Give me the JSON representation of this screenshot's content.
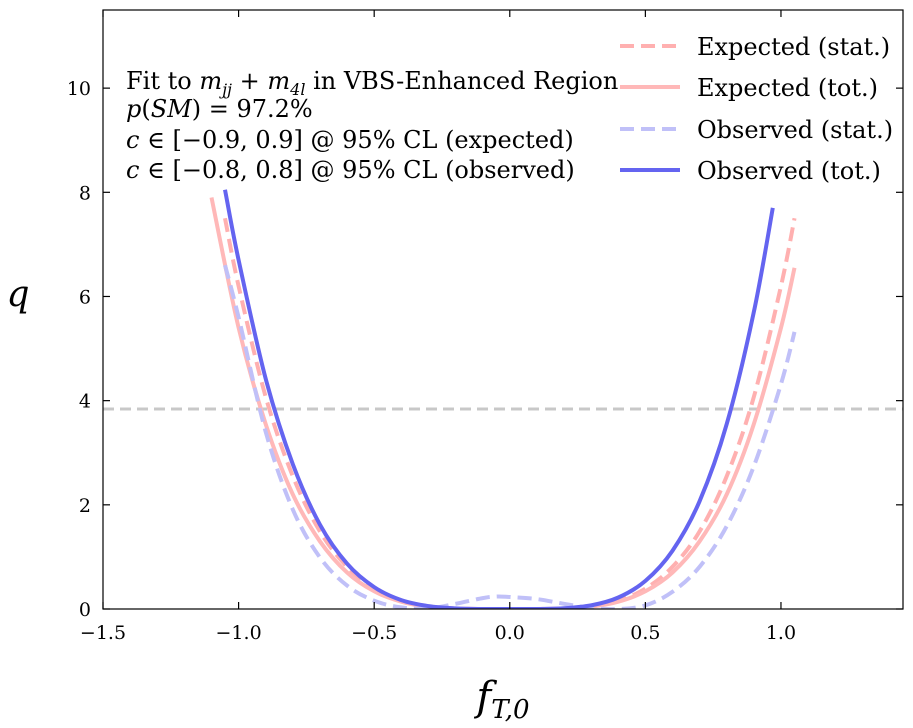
{
  "chart_data": {
    "type": "line",
    "xlabel": "f_{T,0}",
    "ylabel": "q",
    "xlim": [
      -1.5,
      1.45
    ],
    "ylim": [
      0,
      11.5
    ],
    "xticks": [
      -1.5,
      -1.0,
      -0.5,
      0.0,
      0.5,
      1.0
    ],
    "xtick_labels": [
      "−1.5",
      "−1.0",
      "−0.5",
      "0.0",
      "0.5",
      "1.0"
    ],
    "yticks": [
      0,
      2,
      4,
      6,
      8,
      10
    ],
    "ytick_labels": [
      "0",
      "2",
      "4",
      "6",
      "8",
      "10"
    ],
    "grid": false,
    "legend_position": "top-right",
    "annotations": [
      "Fit to mjj + m4l in VBS-Enhanced Region",
      "p(SM) = 97.2%",
      "c ∈ [−0.9, 0.9] @ 95% CL (expected)",
      "c ∈ [−0.8, 0.8] @ 95% CL (observed)"
    ],
    "reference_line": {
      "y": 3.84,
      "color": "#c8c8c8",
      "style": "dashed"
    },
    "series": [
      {
        "name": "Expected (stat.)",
        "color": "#ffb0b0",
        "style": "dashed",
        "x": [
          -1.05,
          -1.0,
          -0.9,
          -0.8,
          -0.7,
          -0.6,
          -0.5,
          -0.4,
          -0.3,
          -0.2,
          -0.1,
          0.0,
          0.1,
          0.2,
          0.3,
          0.4,
          0.5,
          0.6,
          0.7,
          0.8,
          0.9,
          1.0,
          1.05
        ],
        "y": [
          7.5,
          6.2,
          4.07,
          2.55,
          1.49,
          0.81,
          0.39,
          0.16,
          0.051,
          0.01,
          0.0006,
          0.0,
          0.0006,
          0.01,
          0.051,
          0.16,
          0.39,
          0.81,
          1.49,
          2.55,
          4.07,
          6.2,
          7.5
        ]
      },
      {
        "name": "Expected (tot.)",
        "color": "#ffb8b8",
        "style": "solid",
        "x": [
          -1.1,
          -1.0,
          -0.9,
          -0.8,
          -0.7,
          -0.6,
          -0.5,
          -0.4,
          -0.3,
          -0.2,
          -0.1,
          0.0,
          0.1,
          0.2,
          0.3,
          0.4,
          0.5,
          0.6,
          0.7,
          0.8,
          0.9,
          1.0,
          1.05
        ],
        "y": [
          7.9,
          5.4,
          3.55,
          2.2,
          1.3,
          0.7,
          0.34,
          0.14,
          0.044,
          0.009,
          0.0005,
          0.0,
          0.0005,
          0.009,
          0.044,
          0.14,
          0.34,
          0.7,
          1.3,
          2.2,
          3.55,
          5.4,
          6.55
        ]
      },
      {
        "name": "Observed (stat.)",
        "color": "#c0c0f8",
        "style": "dashed",
        "x": [
          -1.05,
          -1.0,
          -0.9,
          -0.8,
          -0.7,
          -0.6,
          -0.5,
          -0.4,
          -0.3,
          -0.2,
          -0.1,
          -0.05,
          0.0,
          0.1,
          0.2,
          0.3,
          0.4,
          0.5,
          0.6,
          0.7,
          0.8,
          0.9,
          1.0,
          1.05
        ],
        "y": [
          6.6,
          5.6,
          3.4,
          1.91,
          0.99,
          0.45,
          0.16,
          0.03,
          0.01,
          0.1,
          0.21,
          0.24,
          0.23,
          0.19,
          0.1,
          0.02,
          0.0,
          0.07,
          0.33,
          0.81,
          1.59,
          2.74,
          4.32,
          5.32
        ]
      },
      {
        "name": "Observed (tot.)",
        "color": "#6464f0",
        "style": "solid",
        "x": [
          -1.05,
          -1.0,
          -0.9,
          -0.8,
          -0.7,
          -0.6,
          -0.5,
          -0.4,
          -0.3,
          -0.2,
          -0.1,
          0.0,
          0.1,
          0.2,
          0.3,
          0.4,
          0.5,
          0.6,
          0.7,
          0.8,
          0.9,
          0.97
        ],
        "y": [
          8.05,
          6.7,
          4.42,
          2.78,
          1.62,
          0.87,
          0.42,
          0.17,
          0.056,
          0.011,
          0.0007,
          0.0,
          0.0009,
          0.014,
          0.07,
          0.22,
          0.54,
          1.12,
          2.07,
          3.55,
          5.7,
          7.7
        ]
      }
    ]
  }
}
